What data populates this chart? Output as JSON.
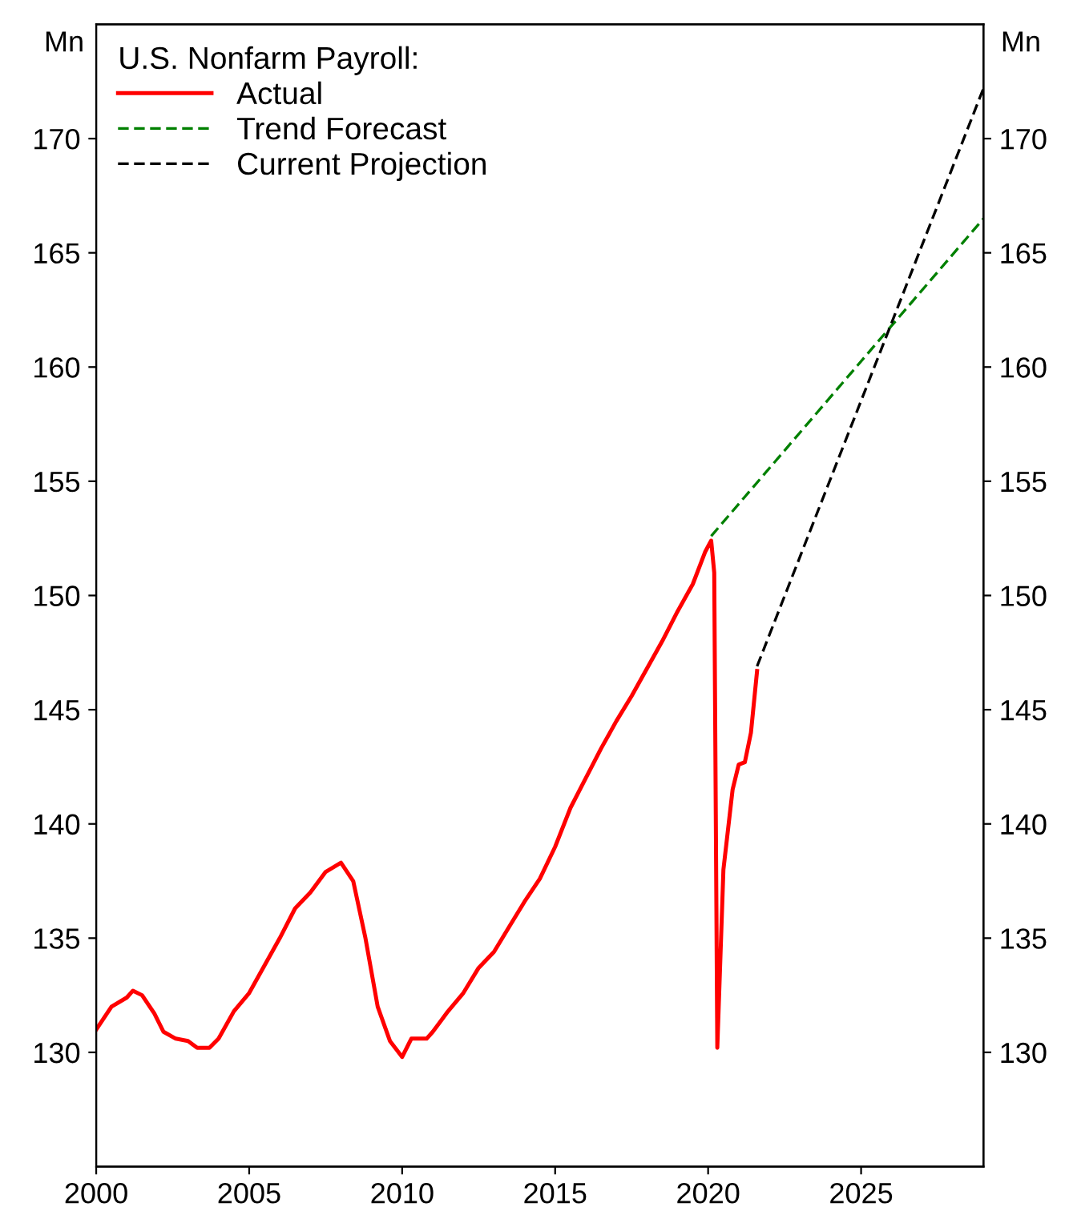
{
  "chart_data": {
    "type": "line",
    "legend_title": "U.S. Nonfarm Payroll:",
    "ylabel": "Mn",
    "y2label": "Mn",
    "xlim": [
      2000,
      2029
    ],
    "xticks": [
      2000,
      2005,
      2010,
      2015,
      2020,
      2025
    ],
    "ylim": [
      125,
      175
    ],
    "yticks": [
      130,
      135,
      140,
      145,
      150,
      155,
      160,
      165,
      170
    ],
    "y2lim": [
      125,
      175
    ],
    "y2ticks": [
      130,
      135,
      140,
      145,
      150,
      155,
      160,
      165,
      170
    ],
    "legend": "top left",
    "grid": false,
    "series": [
      {
        "name": "Actual",
        "color": "#ff0000",
        "line_style": "solid",
        "x": [
          2000,
          2000.5,
          2001,
          2001.2,
          2001.5,
          2001.9,
          2002.2,
          2002.6,
          2003,
          2003.3,
          2003.7,
          2004,
          2004.5,
          2005,
          2005.5,
          2006,
          2006.5,
          2007,
          2007.5,
          2008,
          2008.4,
          2008.8,
          2009.2,
          2009.6,
          2010,
          2010.3,
          2010.8,
          2011,
          2011.5,
          2012,
          2012.5,
          2013,
          2013.5,
          2014,
          2014.5,
          2015,
          2015.5,
          2016,
          2016.5,
          2017,
          2017.5,
          2018,
          2018.5,
          2019,
          2019.5,
          2019.9,
          2020.1,
          2020.2,
          2020.3,
          2020.5,
          2020.8,
          2021,
          2021.2,
          2021.4,
          2021.6
        ],
        "values": [
          131.0,
          132.0,
          132.4,
          132.7,
          132.5,
          131.7,
          130.9,
          130.6,
          130.5,
          130.2,
          130.2,
          130.6,
          131.8,
          132.6,
          133.8,
          135.0,
          136.3,
          137.0,
          137.9,
          138.3,
          137.5,
          135.0,
          132.0,
          130.5,
          129.8,
          130.6,
          130.6,
          130.9,
          131.8,
          132.6,
          133.7,
          134.4,
          135.5,
          136.6,
          137.6,
          139.0,
          140.7,
          142.0,
          143.3,
          144.5,
          145.6,
          146.8,
          148.0,
          149.3,
          150.5,
          151.9,
          152.4,
          151.0,
          130.2,
          138.0,
          141.5,
          142.6,
          142.7,
          144.0,
          146.7
        ]
      },
      {
        "name": "Trend Forecast",
        "color": "#008000",
        "line_style": "dashed",
        "x": [
          2020.1,
          2029
        ],
        "values": [
          152.6,
          166.5
        ]
      },
      {
        "name": "Current Projection",
        "color": "#000000",
        "line_style": "dashed",
        "x": [
          2021.6,
          2029
        ],
        "values": [
          146.9,
          172.2
        ]
      }
    ]
  }
}
